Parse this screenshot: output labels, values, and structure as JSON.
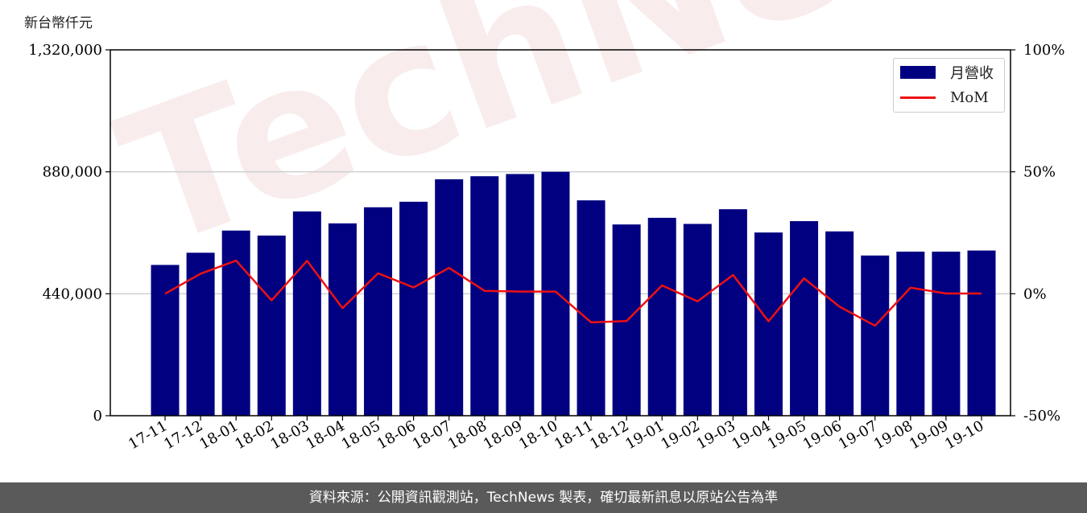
{
  "unit_label": "新台幣仟元",
  "footer_text": "資料來源：公開資訊觀測站，TechNews 製表，確切最新訊息以原站公告為準",
  "watermark_text": "TechNews",
  "chart_data": {
    "type": "bar",
    "categories": [
      "17-11",
      "17-12",
      "18-01",
      "18-02",
      "18-03",
      "18-04",
      "18-05",
      "18-06",
      "18-07",
      "18-08",
      "18-09",
      "18-10",
      "18-11",
      "18-12",
      "19-01",
      "19-02",
      "19-03",
      "19-04",
      "19-05",
      "19-06",
      "19-07",
      "19-08",
      "19-09",
      "19-10"
    ],
    "series": [
      {
        "name": "月營收",
        "type": "bar",
        "axis": "left",
        "color": "#000080",
        "values": [
          544000,
          588000,
          668000,
          650000,
          737000,
          694000,
          752000,
          772000,
          853000,
          864000,
          872000,
          880000,
          777000,
          690000,
          714000,
          692000,
          745000,
          661000,
          702000,
          665000,
          578000,
          592000,
          592000,
          596000
        ]
      },
      {
        "name": "MoM",
        "type": "line",
        "axis": "right",
        "color": "#ee1111",
        "values": [
          0,
          8.2,
          13.6,
          -2.7,
          13.5,
          -5.9,
          8.4,
          2.6,
          10.6,
          1.2,
          0.9,
          0.9,
          -11.7,
          -11.2,
          3.4,
          -3.1,
          7.7,
          -11.3,
          6.3,
          -5.3,
          -13.1,
          2.5,
          0.1,
          0.1
        ]
      }
    ],
    "y_left": {
      "min": 0,
      "max": 1320000,
      "ticks": [
        "0",
        "440,000",
        "880,000",
        "1,320,000"
      ]
    },
    "y_right": {
      "min": -50,
      "max": 100,
      "ticks": [
        "-50%",
        "0%",
        "50%",
        "100%"
      ]
    },
    "grid": "horizontal",
    "legend_placement": "top-right"
  }
}
